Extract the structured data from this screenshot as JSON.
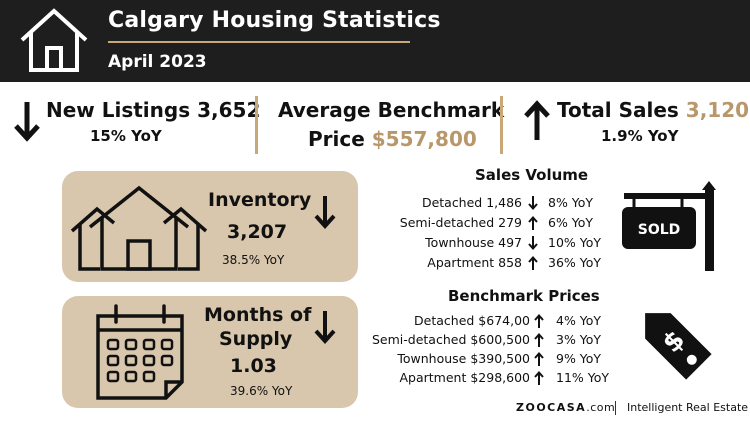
{
  "header": {
    "title": "Calgary Housing Statistics",
    "subtitle": "April 2023",
    "logo_icon": "house-outline-icon"
  },
  "top_stats": {
    "new_listings": {
      "label": "New Listings",
      "value": "3,652",
      "yoy": "15% YoY",
      "trend": "down"
    },
    "benchmark": {
      "label_line1": "Average Benchmark",
      "label_line2": "Price",
      "value": "$557,800"
    },
    "total_sales": {
      "label": "Total Sales",
      "value": "3,120",
      "yoy": "1.9% YoY",
      "trend": "up"
    }
  },
  "inventory": {
    "label": "Inventory",
    "value": "3,207",
    "yoy": "38.5% YoY",
    "trend": "down",
    "icon": "houses-icon"
  },
  "supply": {
    "label_line1": "Months of",
    "label_line2": "Supply",
    "value": "1.03",
    "yoy": "39.6% YoY",
    "trend": "down",
    "icon": "calendar-icon"
  },
  "sales_volume": {
    "title": "Sales Volume",
    "icon": "sold-sign-icon",
    "sign_text": "SOLD",
    "rows": [
      {
        "label": "Detached 1,486",
        "trend": "down",
        "pct": "8% YoY"
      },
      {
        "label": "Semi-detached 279",
        "trend": "up",
        "pct": "6% YoY"
      },
      {
        "label": "Townhouse 497",
        "trend": "down",
        "pct": "10% YoY"
      },
      {
        "label": "Apartment 858",
        "trend": "up",
        "pct": "36% YoY"
      }
    ]
  },
  "benchmark_prices": {
    "title": "Benchmark Prices",
    "icon": "price-tag-icon",
    "rows": [
      {
        "label": "Detached $674,00",
        "trend": "up",
        "pct": "4% YoY"
      },
      {
        "label": "Semi-detached $600,500",
        "trend": "up",
        "pct": "3% YoY"
      },
      {
        "label": "Townhouse $390,500",
        "trend": "up",
        "pct": "9% YoY"
      },
      {
        "label": "Apartment $298,600",
        "trend": "up",
        "pct": "11% YoY"
      }
    ]
  },
  "footer": {
    "brand": "ZOOCASA",
    "domain": ".com",
    "tagline": "Intelligent Real Estate"
  }
}
